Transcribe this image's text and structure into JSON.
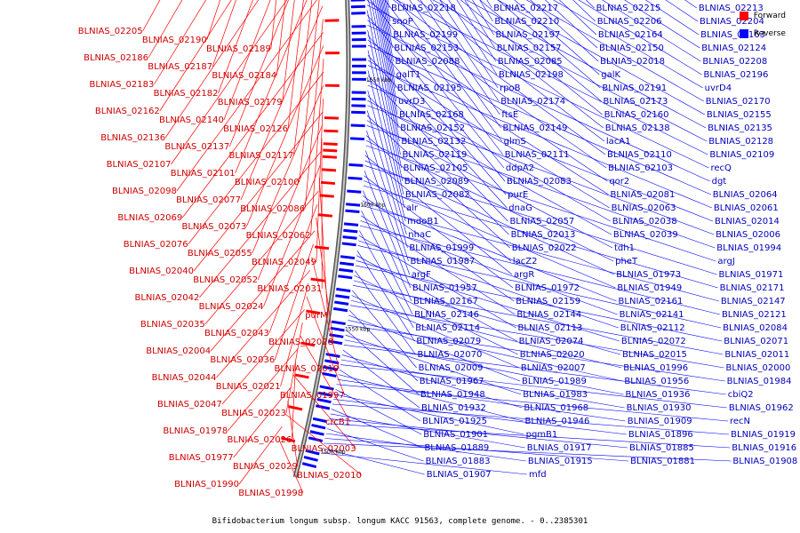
{
  "legend": {
    "forward_label": "Forward",
    "reverse_label": "Reverse",
    "forward_color": "#ff0000",
    "reverse_color": "#0000ff"
  },
  "caption": "Bifidobacterium longum subsp. longum KACC 91563, complete genome. - 0..2385301",
  "axis_ticks": [
    "1750 kbp",
    "1700 kbp",
    "1650 kbp",
    "1600 kbp",
    "1550 kbp",
    "1500 kbp"
  ],
  "labels_forward": [
    "BLNIAS_02205",
    "BLNIAS_02190",
    "BLNIAS_02189",
    "BLNIAS_02186",
    "BLNIAS_02187",
    "BLNIAS_02184",
    "BLNIAS_02183",
    "BLNIAS_02182",
    "BLNIAS_02179",
    "BLNIAS_02162",
    "BLNIAS_02140",
    "BLNIAS_02126",
    "BLNIAS_02136",
    "BLNIAS_02137",
    "BLNIAS_02117",
    "BLNIAS_02107",
    "BLNIAS_02101",
    "BLNIAS_02100",
    "BLNIAS_02098",
    "BLNIAS_02077",
    "BLNIAS_02086",
    "BLNIAS_02069",
    "BLNIAS_02073",
    "BLNIAS_02062",
    "BLNIAS_02076",
    "BLNIAS_02055",
    "BLNIAS_02049",
    "BLNIAS_02040",
    "BLNIAS_02052",
    "BLNIAS_02031",
    "BLNIAS_02042",
    "BLNIAS_02024",
    "purM",
    "BLNIAS_02035",
    "BLNIAS_02043",
    "BLNIAS_02028",
    "BLNIAS_02004",
    "BLNIAS_02036",
    "BLNIAS_02019",
    "BLNIAS_02044",
    "BLNIAS_02021",
    "BLNIAS_01997",
    "BLNIAS_02047",
    "BLNIAS_02023",
    "crcB1",
    "BLNIAS_01978",
    "BLNIAS_02026",
    "BLNIAS_02003",
    "BLNIAS_01977",
    "BLNIAS_02029",
    "BLNIAS_02010",
    "BLNIAS_01990",
    "BLNIAS_01998"
  ],
  "labels_reverse": [
    "BLNIAS_02218",
    "BLNIAS_02217",
    "BLNIAS_02215",
    "BLNIAS_02213",
    "snoP",
    "BLNIAS_02210",
    "BLNIAS_02206",
    "BLNIAS_02204",
    "BLNIAS_02199",
    "BLNIAS_02197",
    "BLNIAS_02164",
    "BLNIAS_02163",
    "BLNIAS_02153",
    "BLNIAS_02157",
    "BLNIAS_02150",
    "BLNIAS_02124",
    "BLNIAS_02088",
    "BLNIAS_02085",
    "BLNIAS_02018",
    "BLNIAS_02208",
    "galT1",
    "BLNIAS_02198",
    "galK",
    "BLNIAS_02196",
    "BLNIAS_02195",
    "rpoB",
    "BLNIAS_02191",
    "uvrD4",
    "uvrD3",
    "BLNIAS_02174",
    "BLNIAS_02173",
    "BLNIAS_02170",
    "BLNIAS_02168",
    "ftsE",
    "BLNIAS_02160",
    "BLNIAS_02155",
    "BLNIAS_02152",
    "BLNIAS_02149",
    "BLNIAS_02138",
    "BLNIAS_02135",
    "BLNIAS_02132",
    "glmS",
    "lacA1",
    "BLNIAS_02128",
    "BLNIAS_02119",
    "BLNIAS_02111",
    "BLNIAS_02110",
    "BLNIAS_02109",
    "BLNIAS_02105",
    "ddpA2",
    "BLNIAS_02103",
    "recQ",
    "BLNIAS_02089",
    "BLNIAS_02083",
    "qor2",
    "dgt",
    "BLNIAS_02082",
    "purE",
    "BLNIAS_02081",
    "BLNIAS_02064",
    "alr",
    "dnaG",
    "BLNIAS_02063",
    "BLNIAS_02061",
    "mdoB1",
    "BLNIAS_02057",
    "BLNIAS_02038",
    "BLNIAS_02014",
    "nhaC",
    "BLNIAS_02013",
    "BLNIAS_02039",
    "BLNIAS_02006",
    "BLNIAS_01999",
    "BLNIAS_02022",
    "tdh1",
    "BLNIAS_01994",
    "BLNIAS_01987",
    "lacZ2",
    "pheT",
    "argJ",
    "argF",
    "argR",
    "BLNIAS_01973",
    "BLNIAS_01971",
    "BLNIAS_01957",
    "BLNIAS_01972",
    "BLNIAS_01949",
    "BLNIAS_02171",
    "BLNIAS_02167",
    "BLNIAS_02159",
    "BLNIAS_02161",
    "BLNIAS_02147",
    "BLNIAS_02146",
    "BLNIAS_02144",
    "BLNIAS_02141",
    "BLNIAS_02121",
    "BLNIAS_02114",
    "BLNIAS_02113",
    "BLNIAS_02112",
    "BLNIAS_02084",
    "BLNIAS_02079",
    "BLNIAS_02074",
    "BLNIAS_02072",
    "BLNIAS_02071",
    "BLNIAS_02070",
    "BLNIAS_02020",
    "BLNIAS_02015",
    "BLNIAS_02011",
    "BLNIAS_02009",
    "BLNIAS_02007",
    "BLNIAS_01996",
    "BLNIAS_02000",
    "BLNIAS_01967",
    "BLNIAS_01989",
    "BLNIAS_01956",
    "BLNIAS_01984",
    "BLNIAS_01948",
    "BLNIAS_01983",
    "BLNIAS_01936",
    "cbiQ2",
    "BLNIAS_01932",
    "BLNIAS_01968",
    "BLNIAS_01930",
    "BLNIAS_01962",
    "BLNIAS_01925",
    "BLNIAS_01946",
    "BLNIAS_01909",
    "recN",
    "BLNIAS_01901",
    "pgmB1",
    "BLNIAS_01896",
    "BLNIAS_01919",
    "BLNIAS_01889",
    "BLNIAS_01917",
    "BLNIAS_01885",
    "BLNIAS_01916",
    "BLNIAS_01883",
    "BLNIAS_01915",
    "BLNIAS_01881",
    "BLNIAS_01908",
    "BLNIAS_01907",
    "mfd"
  ]
}
